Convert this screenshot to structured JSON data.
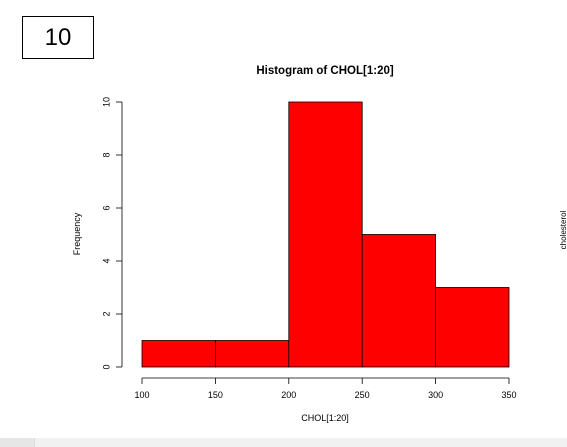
{
  "panel_number": "10",
  "side_label": "cholesterol",
  "colors": {
    "bar_fill": "#ff0000",
    "bar_stroke": "#000000",
    "axis": "#000000",
    "background": "#ffffff"
  },
  "chart_data": {
    "type": "bar",
    "title": "Histogram of CHOL[1:20]",
    "xlabel": "CHOL[1:20]",
    "ylabel": "Frequency",
    "bins": [
      {
        "start": 100,
        "end": 150,
        "count": 1
      },
      {
        "start": 150,
        "end": 200,
        "count": 1
      },
      {
        "start": 200,
        "end": 250,
        "count": 10
      },
      {
        "start": 250,
        "end": 300,
        "count": 5
      },
      {
        "start": 300,
        "end": 350,
        "count": 3
      }
    ],
    "x_ticks": [
      100,
      150,
      200,
      250,
      300,
      350
    ],
    "y_ticks": [
      0,
      2,
      4,
      6,
      8,
      10
    ],
    "xlim": [
      100,
      350
    ],
    "ylim": [
      0,
      10
    ],
    "grid": false,
    "legend": "none"
  }
}
